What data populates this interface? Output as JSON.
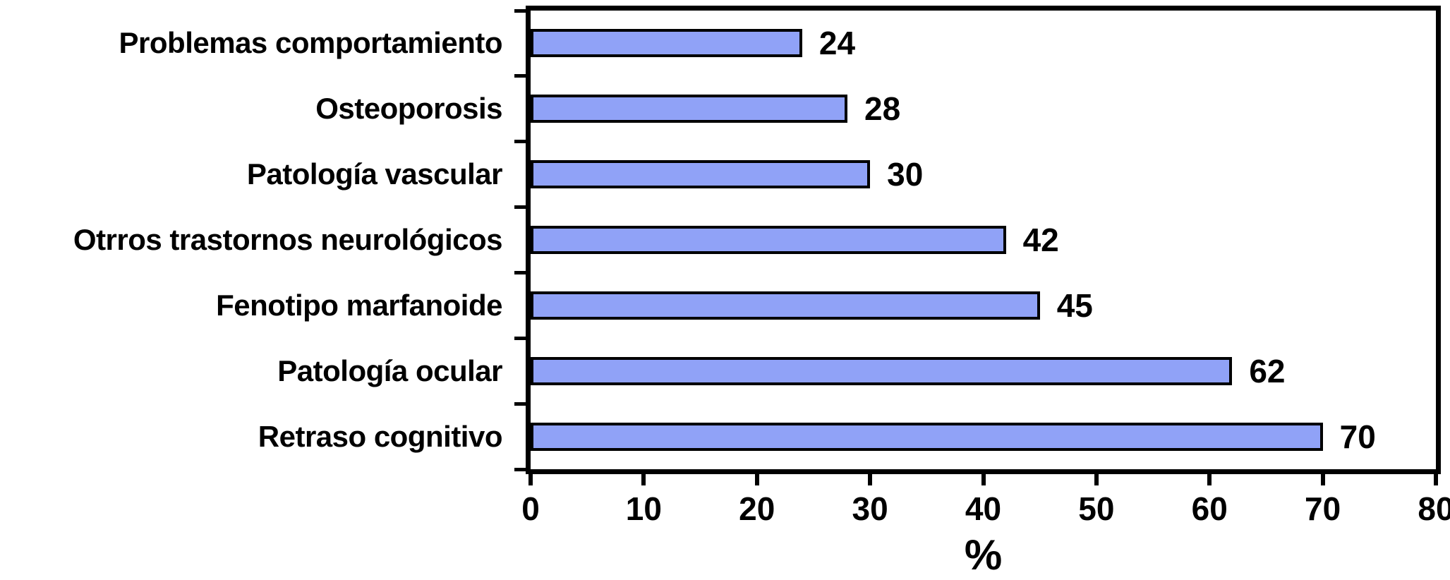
{
  "chart_data": {
    "type": "bar",
    "orientation": "horizontal",
    "title": "",
    "categories": [
      "Problemas comportamiento",
      "Osteoporosis",
      "Patología vascular",
      "Otrros trastornos neurológicos",
      "Fenotipo marfanoide",
      "Patología ocular",
      "Retraso cognitivo"
    ],
    "values": [
      24,
      28,
      30,
      42,
      45,
      62,
      70
    ],
    "value_labels": [
      "24",
      "28",
      "30",
      "42",
      "45",
      "62",
      "70"
    ],
    "xlabel": "%",
    "xlim": [
      0,
      80
    ],
    "xticks": [
      0,
      10,
      20,
      30,
      40,
      50,
      60,
      70,
      80
    ],
    "grid": false,
    "legend": "none",
    "colors": {
      "bar_fill": "#90A2F7",
      "bar_border": "#000000",
      "axis": "#000000",
      "text": "#000000",
      "background": "#FFFFFF"
    }
  }
}
